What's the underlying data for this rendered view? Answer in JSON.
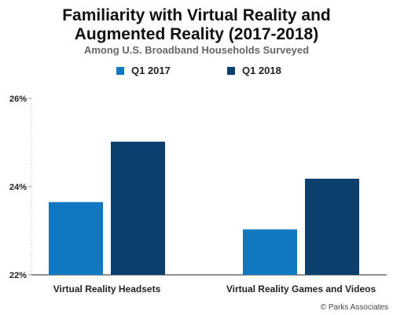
{
  "chart_data": {
    "type": "bar",
    "title_lines": [
      "Familiarity with Virtual Reality and",
      "Augmented Reality (2017-2018)"
    ],
    "subtitle": "Among U.S. Broadband Households Surveyed",
    "categories": [
      "Virtual Reality Headsets",
      "Virtual Reality Games and Videos"
    ],
    "series": [
      {
        "name": "Q1 2017",
        "color": "#0f78c0",
        "values": [
          23.65,
          23.03
        ]
      },
      {
        "name": "Q1 2018",
        "color": "#0b3f6e",
        "values": [
          25.02,
          24.18
        ]
      }
    ],
    "ylim": [
      22,
      26
    ],
    "yticks": [
      "22%",
      "24%",
      "26%"
    ],
    "ytick_values": [
      22,
      24,
      26
    ],
    "legend_position": "top-center",
    "grid": false
  },
  "credit": "© Parks Associates"
}
